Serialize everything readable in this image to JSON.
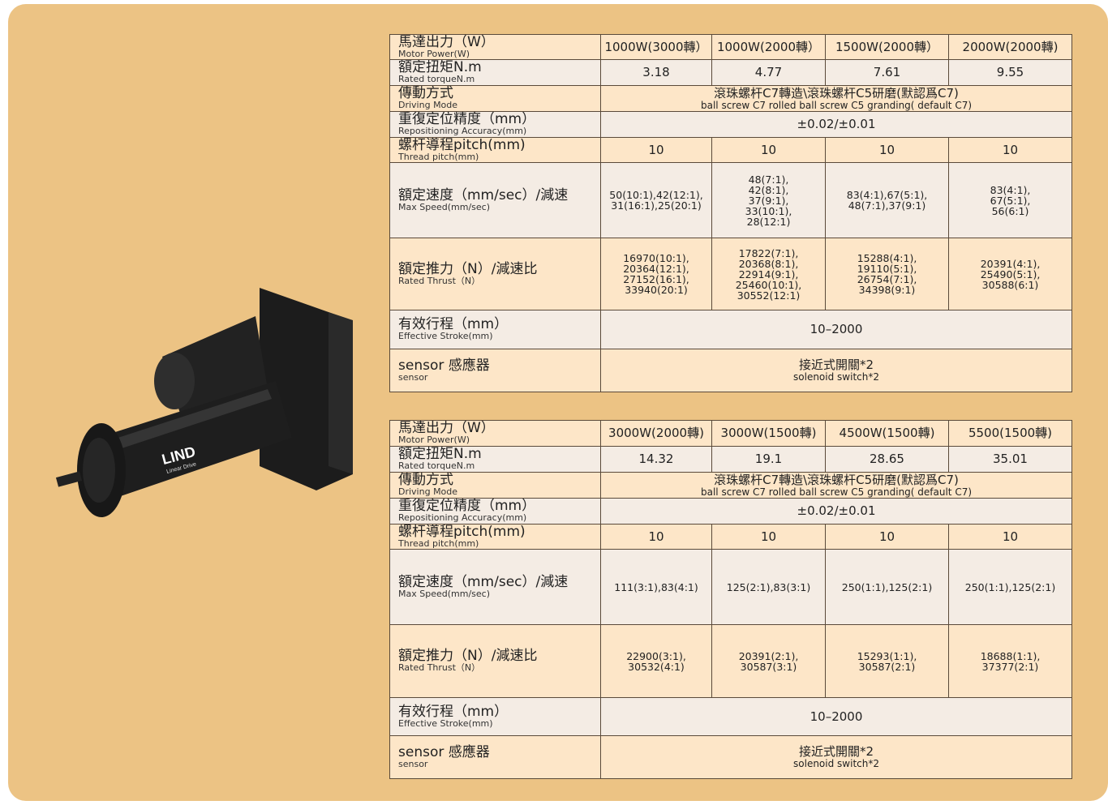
{
  "product": {
    "logo": "LIND",
    "logo_sub": "Linear Drive"
  },
  "tables": [
    {
      "rows": [
        {
          "label": [
            "馬達出力（W）",
            "Motor Power(W)"
          ],
          "cells": [
            [
              "1000W(3000轉）"
            ],
            [
              "1000W(2000轉）"
            ],
            [
              "1500W(2000轉）"
            ],
            [
              "2000W(2000轉)"
            ]
          ]
        },
        {
          "label": [
            "額定扭矩N.m",
            "Rated torqueN.m"
          ],
          "cells": [
            [
              "3.18"
            ],
            [
              "4.77"
            ],
            [
              "7.61"
            ],
            [
              "9.55"
            ]
          ]
        },
        {
          "label": [
            "傳動方式",
            "Driving Mode"
          ],
          "cells": [
            [
              "滾珠螺杆C7轉造\\滾珠螺杆C5研磨(默認爲C7)",
              "ball screw C7 rolled ball screw C5 granding( default C7)"
            ]
          ]
        },
        {
          "label": [
            "重復定位精度（mm）",
            "Repositioning Accuracy(mm)"
          ],
          "cells": [
            [
              "±0.02/±0.01"
            ]
          ]
        },
        {
          "label": [
            "螺杆導程pitch(mm)",
            "Thread pitch(mm)"
          ],
          "cells": [
            [
              "10"
            ],
            [
              "10"
            ],
            [
              "10"
            ],
            [
              "10"
            ]
          ]
        },
        {
          "label": [
            "額定速度（mm/sec）/減速",
            "Max Speed(mm/sec)"
          ],
          "cells": [
            [
              "50(10:1),42(12:1),",
              "31(16:1),25(20:1)"
            ],
            [
              "48(7:1),",
              "42(8:1),",
              "37(9:1),",
              "33(10:1),",
              "28(12:1)"
            ],
            [
              "83(4:1),67(5:1),",
              "48(7:1),37(9:1)"
            ],
            [
              "83(4:1),",
              "67(5:1),",
              "56(6:1)"
            ]
          ]
        },
        {
          "label": [
            "額定推力（N）/減速比",
            "Rated Thrust（N）"
          ],
          "cells": [
            [
              "16970(10:1),",
              "20364(12:1),",
              "27152(16:1),",
              "33940(20:1)"
            ],
            [
              "17822(7:1),",
              "20368(8:1),",
              "22914(9:1),",
              "25460(10:1),",
              "30552(12:1)"
            ],
            [
              "15288(4:1),",
              "19110(5:1),",
              "26754(7:1),",
              "34398(9:1)"
            ],
            [
              "20391(4:1),",
              "25490(5:1),",
              "30588(6:1)"
            ]
          ]
        },
        {
          "label": [
            "有效行程（mm）",
            "Effective Stroke(mm)"
          ],
          "cells": [
            [
              "10–2000"
            ]
          ]
        },
        {
          "label": [
            "sensor 感應器",
            "sensor"
          ],
          "cells": [
            [
              "接近式開關*2",
              "solenoid switch*2"
            ]
          ]
        }
      ]
    },
    {
      "rows": [
        {
          "label": [
            "馬達出力（W）",
            "Motor Power(W)"
          ],
          "cells": [
            [
              "3000W(2000轉)"
            ],
            [
              "3000W(1500轉)"
            ],
            [
              "4500W(1500轉)"
            ],
            [
              "5500(1500轉)"
            ]
          ]
        },
        {
          "label": [
            "額定扭矩N.m",
            "Rated torqueN.m"
          ],
          "cells": [
            [
              "14.32"
            ],
            [
              "19.1"
            ],
            [
              "28.65"
            ],
            [
              "35.01"
            ]
          ]
        },
        {
          "label": [
            "傳動方式",
            "Driving Mode"
          ],
          "cells": [
            [
              "滾珠螺杆C7轉造\\滾珠螺杆C5研磨(默認爲C7)",
              "ball screw C7 rolled ball screw C5 granding( default C7)"
            ]
          ]
        },
        {
          "label": [
            "重復定位精度（mm）",
            "Repositioning Accuracy(mm)"
          ],
          "cells": [
            [
              "±0.02/±0.01"
            ]
          ]
        },
        {
          "label": [
            "螺杆導程pitch(mm)",
            "Thread pitch(mm)"
          ],
          "cells": [
            [
              "10"
            ],
            [
              "10"
            ],
            [
              "10"
            ],
            [
              "10"
            ]
          ]
        },
        {
          "label": [
            "額定速度（mm/sec）/減速",
            "Max Speed(mm/sec)"
          ],
          "cells": [
            [
              "111(3:1),83(4:1)"
            ],
            [
              "125(2:1),83(3:1)"
            ],
            [
              "250(1:1),125(2:1)"
            ],
            [
              "250(1:1),125(2:1)"
            ]
          ]
        },
        {
          "label": [
            "額定推力（N）/減速比",
            "Rated Thrust（N）"
          ],
          "cells": [
            [
              "22900(3:1),",
              "30532(4:1)"
            ],
            [
              "20391(2:1),",
              "30587(3:1)"
            ],
            [
              "15293(1:1),",
              "30587(2:1)"
            ],
            [
              "18688(1:1),",
              "37377(2:1)"
            ]
          ]
        },
        {
          "label": [
            "有效行程（mm）",
            "Effective Stroke(mm)"
          ],
          "cells": [
            [
              "10–2000"
            ]
          ]
        },
        {
          "label": [
            "sensor 感應器",
            "sensor"
          ],
          "cells": [
            [
              "接近式開關*2",
              "solenoid switch*2"
            ]
          ]
        }
      ]
    }
  ]
}
